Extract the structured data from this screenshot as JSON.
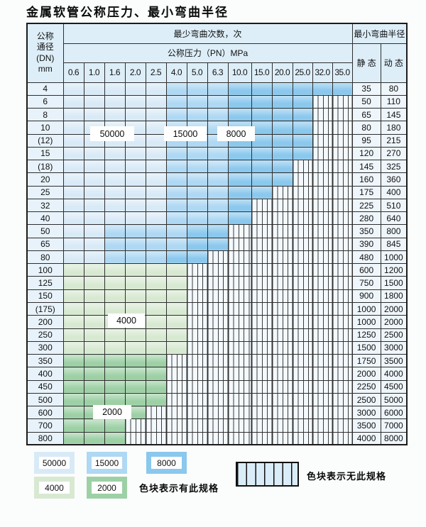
{
  "title": "金属软管公称压力、最小弯曲半径",
  "header": {
    "dn_lines": [
      "公称",
      "通径",
      "(DN)",
      "mm"
    ],
    "bend_cycles": "最少弯曲次数，次",
    "pressure": "公称压力（PN）MPa",
    "radius": "最小弯曲半径",
    "static_label": "静 态",
    "dynamic_label": "动 态",
    "pressures": [
      "0.6",
      "1.0",
      "1.6",
      "2.0",
      "2.5",
      "4.0",
      "5.0",
      "6.3",
      "10.0",
      "15.0",
      "20.0",
      "25.0",
      "32.0",
      "35.0"
    ]
  },
  "zone_labels": {
    "z50000": "50000",
    "z15000": "15000",
    "z8000": "8000",
    "z4000": "4000",
    "z2000": "2000"
  },
  "rows": [
    {
      "dn": "4",
      "bands": [
        [
          "b50",
          5
        ],
        [
          "b15",
          3
        ],
        [
          "b8",
          6
        ]
      ],
      "static": "35",
      "dynamic": "80"
    },
    {
      "dn": "6",
      "bands": [
        [
          "b50",
          5
        ],
        [
          "b15",
          3
        ],
        [
          "b8",
          4
        ]
      ],
      "static": "50",
      "dynamic": "110"
    },
    {
      "dn": "8",
      "bands": [
        [
          "b50",
          5
        ],
        [
          "b15",
          3
        ],
        [
          "b8",
          4
        ]
      ],
      "static": "65",
      "dynamic": "145"
    },
    {
      "dn": "10",
      "bands": [
        [
          "b50",
          5
        ],
        [
          "b15",
          3
        ],
        [
          "b8",
          4
        ]
      ],
      "static": "80",
      "dynamic": "180"
    },
    {
      "dn": "(12)",
      "bands": [
        [
          "b50",
          5
        ],
        [
          "b15",
          3
        ],
        [
          "b8",
          4
        ]
      ],
      "static": "95",
      "dynamic": "215"
    },
    {
      "dn": "15",
      "bands": [
        [
          "b50",
          5
        ],
        [
          "b15",
          3
        ],
        [
          "b8",
          4
        ]
      ],
      "static": "120",
      "dynamic": "270"
    },
    {
      "dn": "(18)",
      "bands": [
        [
          "b50",
          5
        ],
        [
          "b15",
          3
        ],
        [
          "b8",
          3
        ]
      ],
      "static": "145",
      "dynamic": "325"
    },
    {
      "dn": "20",
      "bands": [
        [
          "b50",
          5
        ],
        [
          "b15",
          3
        ],
        [
          "b8",
          3
        ]
      ],
      "static": "160",
      "dynamic": "360"
    },
    {
      "dn": "25",
      "bands": [
        [
          "b50",
          5
        ],
        [
          "b15",
          3
        ],
        [
          "b8",
          2
        ]
      ],
      "static": "175",
      "dynamic": "400"
    },
    {
      "dn": "32",
      "bands": [
        [
          "b50",
          5
        ],
        [
          "b15",
          3
        ],
        [
          "b8",
          1
        ]
      ],
      "static": "225",
      "dynamic": "510"
    },
    {
      "dn": "40",
      "bands": [
        [
          "b50",
          5
        ],
        [
          "b15",
          3
        ],
        [
          "b8",
          1
        ]
      ],
      "static": "280",
      "dynamic": "640"
    },
    {
      "dn": "50",
      "bands": [
        [
          "b50",
          2
        ],
        [
          "b15",
          4
        ],
        [
          "b8",
          2
        ]
      ],
      "static": "350",
      "dynamic": "800"
    },
    {
      "dn": "65",
      "bands": [
        [
          "b50",
          2
        ],
        [
          "b15",
          4
        ],
        [
          "b8",
          2
        ]
      ],
      "static": "390",
      "dynamic": "845"
    },
    {
      "dn": "80",
      "bands": [
        [
          "b50",
          2
        ],
        [
          "b15",
          3
        ],
        [
          "b8",
          2
        ]
      ],
      "static": "480",
      "dynamic": "1000"
    },
    {
      "dn": "100",
      "bands": [
        [
          "g4",
          6
        ]
      ],
      "static": "600",
      "dynamic": "1200"
    },
    {
      "dn": "125",
      "bands": [
        [
          "g4",
          6
        ]
      ],
      "static": "750",
      "dynamic": "1500"
    },
    {
      "dn": "150",
      "bands": [
        [
          "g4",
          6
        ]
      ],
      "static": "900",
      "dynamic": "1800"
    },
    {
      "dn": "(175)",
      "bands": [
        [
          "g4",
          6
        ]
      ],
      "static": "1000",
      "dynamic": "2000"
    },
    {
      "dn": "200",
      "bands": [
        [
          "g4",
          6
        ]
      ],
      "static": "1000",
      "dynamic": "2000"
    },
    {
      "dn": "250",
      "bands": [
        [
          "g4",
          6
        ]
      ],
      "static": "1250",
      "dynamic": "2500"
    },
    {
      "dn": "300",
      "bands": [
        [
          "g4",
          6
        ]
      ],
      "static": "1500",
      "dynamic": "3000"
    },
    {
      "dn": "350",
      "bands": [
        [
          "g2",
          5
        ]
      ],
      "static": "1750",
      "dynamic": "3500"
    },
    {
      "dn": "400",
      "bands": [
        [
          "g2",
          5
        ]
      ],
      "static": "2000",
      "dynamic": "4000"
    },
    {
      "dn": "450",
      "bands": [
        [
          "g2",
          5
        ]
      ],
      "static": "2250",
      "dynamic": "4500"
    },
    {
      "dn": "500",
      "bands": [
        [
          "g2",
          5
        ]
      ],
      "static": "2500",
      "dynamic": "5000"
    },
    {
      "dn": "600",
      "bands": [
        [
          "g2",
          4
        ]
      ],
      "static": "3000",
      "dynamic": "6000"
    },
    {
      "dn": "700",
      "bands": [
        [
          "g2",
          3
        ]
      ],
      "static": "3500",
      "dynamic": "7000"
    },
    {
      "dn": "800",
      "bands": [
        [
          "g2",
          3
        ]
      ],
      "static": "4000",
      "dynamic": "8000"
    }
  ],
  "legend": {
    "items": [
      {
        "label": "50000"
      },
      {
        "label": "15000"
      },
      {
        "label": "8000"
      },
      {
        "label": "4000"
      },
      {
        "label": "2000"
      }
    ],
    "has_spec": "色块表示有此规格",
    "no_spec": "色块表示无此规格"
  },
  "colors": {
    "blue_50000": "#d9eaf7",
    "blue_15000": "#aed8f3",
    "blue_8000": "#8bc8ed",
    "green_4000": "#d8e9d2",
    "green_2000": "#9dd0a5",
    "header_bg": "#ddeef8",
    "grid_line": "#2e2e2e"
  }
}
